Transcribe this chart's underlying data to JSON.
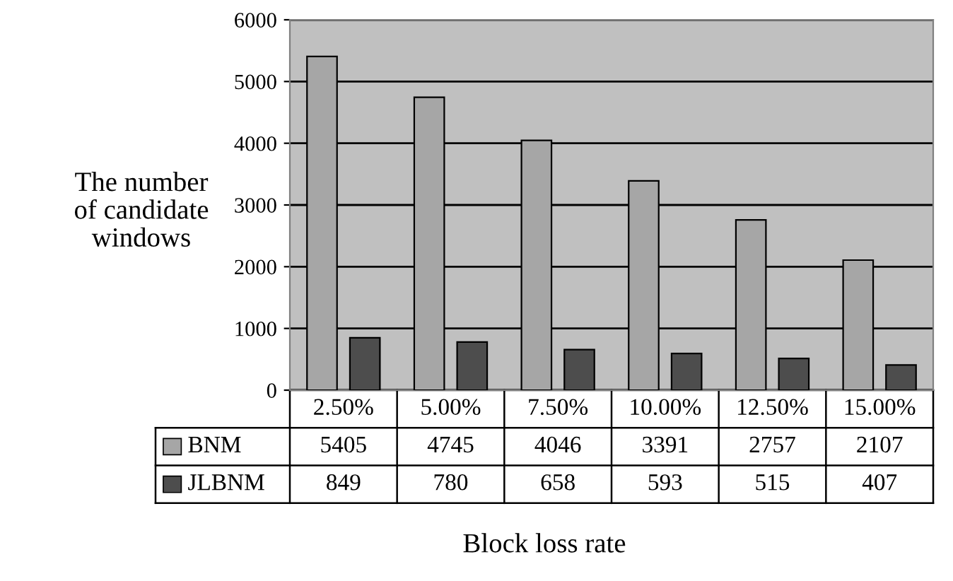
{
  "chart_data": {
    "type": "bar",
    "xlabel": "Block loss rate",
    "ylabel": "The number\nof candidate\nwindows",
    "categories": [
      "2.50%",
      "5.00%",
      "7.50%",
      "10.00%",
      "12.50%",
      "15.00%"
    ],
    "series": [
      {
        "name": "BNM",
        "color": "#a6a6a6",
        "values": [
          5405,
          4745,
          4046,
          3391,
          2757,
          2107
        ]
      },
      {
        "name": "JLBNM",
        "color": "#4d4d4d",
        "values": [
          849,
          780,
          658,
          593,
          515,
          407
        ]
      }
    ],
    "ylim": [
      0,
      6000
    ],
    "yticks": [
      0,
      1000,
      2000,
      3000,
      4000,
      5000,
      6000
    ],
    "grid": "y",
    "legend": "bottom",
    "data_labels": true
  }
}
